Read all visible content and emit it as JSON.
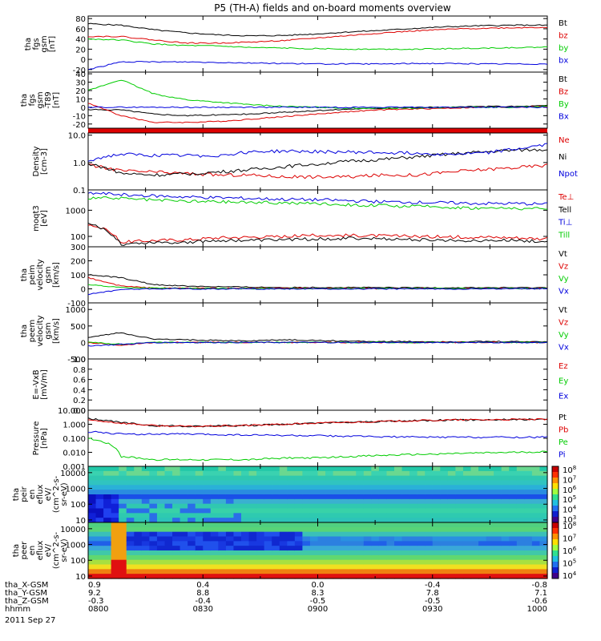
{
  "title": "P5 (TH-A) fields and on-board moments overview",
  "date_label": "2011 Sep 27",
  "colors": {
    "black": "#000000",
    "red": "#dd0000",
    "green": "#00cc00",
    "blue": "#0000dd"
  },
  "colorbar_ticks": [
    "10^8",
    "10^7",
    "10^6",
    "10^5",
    "10^4",
    "10^3"
  ],
  "colorbar2_ticks": [
    "10^8",
    "10^7",
    "10^6",
    "10^5",
    "10^4"
  ],
  "time_axis": {
    "rows": [
      {
        "label": "tha_X-GSM",
        "values": [
          "0.9",
          "0.4",
          "0.0",
          "-0.4",
          "-0.8"
        ]
      },
      {
        "label": "tha_Y-GSM",
        "values": [
          "9.2",
          "8.8",
          "8.3",
          "7.8",
          "7.1"
        ]
      },
      {
        "label": "tha_Z-GSM",
        "values": [
          "-0.3",
          "-0.4",
          "-0.5",
          "-0.5",
          "-0.6"
        ]
      },
      {
        "label": "hhmm",
        "values": [
          "0800",
          "0830",
          "0900",
          "0930",
          "1000"
        ]
      }
    ]
  },
  "chart_data": [
    {
      "type": "line",
      "ylabel": [
        "tha",
        "fgs",
        "gsm",
        "[nT]"
      ],
      "yticks": [
        "80",
        "60",
        "40",
        "20",
        "0",
        "-20"
      ],
      "ylim": [
        -25,
        85
      ],
      "series": [
        {
          "name": "Bt",
          "color": "black",
          "values": [
            70,
            67,
            58,
            52,
            48,
            46,
            47,
            50,
            54,
            57,
            61,
            64,
            66,
            67,
            67
          ]
        },
        {
          "name": "bz",
          "color": "red",
          "values": [
            45,
            45,
            38,
            32,
            32,
            34,
            37,
            42,
            47,
            52,
            56,
            59,
            61,
            62,
            63
          ]
        },
        {
          "name": "by",
          "color": "green",
          "values": [
            40,
            38,
            30,
            27,
            26,
            23,
            22,
            21,
            20,
            20,
            20,
            21,
            22,
            23,
            24
          ]
        },
        {
          "name": "bx",
          "color": "blue",
          "values": [
            -20,
            -5,
            -5,
            -5,
            -6,
            -7,
            -8,
            -9,
            -9,
            -9,
            -8,
            -8,
            -9,
            -9,
            -9
          ]
        }
      ]
    },
    {
      "type": "line",
      "ylabel": [
        "tha",
        "fgs",
        "gsm",
        "-T89",
        "[nT]"
      ],
      "yticks": [
        "40",
        "30",
        "20",
        "10",
        "0",
        "-10",
        "-20"
      ],
      "ylim": [
        -25,
        42
      ],
      "series": [
        {
          "name": "Bt",
          "color": "black",
          "values": [
            -3,
            -3,
            -8,
            -10,
            -9,
            -8,
            -6,
            -4,
            -2,
            -1,
            0,
            0,
            1,
            1,
            2
          ]
        },
        {
          "name": "Bz",
          "color": "red",
          "values": [
            5,
            -10,
            -18,
            -18,
            -17,
            -14,
            -11,
            -8,
            -5,
            -3,
            -2,
            -1,
            0,
            0,
            1
          ]
        },
        {
          "name": "By",
          "color": "green",
          "values": [
            20,
            33,
            16,
            9,
            6,
            3,
            1,
            0,
            -1,
            -1,
            -1,
            0,
            0,
            0,
            1
          ]
        },
        {
          "name": "Bx",
          "color": "blue",
          "values": [
            0,
            0,
            0,
            0,
            0,
            0,
            0,
            0,
            0,
            0,
            0,
            0,
            0,
            0,
            0
          ]
        }
      ]
    },
    {
      "type": "line",
      "scale": "log",
      "ylabel": [
        "Density",
        "[cm-3]"
      ],
      "yticks": [
        "10.0",
        "1.0",
        "0.1"
      ],
      "ylim": [
        0.1,
        12
      ],
      "series": [
        {
          "name": "Ne",
          "color": "red",
          "values": [
            0.8,
            0.5,
            0.45,
            0.4,
            0.35,
            0.35,
            0.3,
            0.3,
            0.3,
            0.35,
            0.35,
            0.45,
            0.55,
            0.65,
            0.8
          ]
        },
        {
          "name": "Ni",
          "color": "black",
          "values": [
            0.9,
            0.4,
            0.35,
            0.38,
            0.45,
            0.55,
            0.7,
            0.9,
            1.1,
            1.3,
            1.6,
            2.0,
            2.4,
            2.8,
            3.0
          ]
        },
        {
          "name": "Npot",
          "color": "blue",
          "values": [
            1.2,
            2.0,
            1.8,
            1.8,
            1.8,
            2.5,
            2.6,
            2.5,
            2.4,
            2.3,
            2.2,
            2.0,
            2.2,
            3.0,
            4.5
          ]
        }
      ]
    },
    {
      "type": "line",
      "scale": "log",
      "ylabel": [
        "moqt3",
        "[eV]"
      ],
      "yticks": [
        "1000",
        "100"
      ],
      "ylim": [
        40,
        6000
      ],
      "series": [
        {
          "name": "Te⊥",
          "color": "red",
          "values": [
            300,
            60,
            70,
            75,
            90,
            95,
            100,
            110,
            110,
            105,
            100,
            95,
            95,
            90,
            80
          ]
        },
        {
          "name": "Tell",
          "color": "black",
          "values": [
            300,
            50,
            60,
            60,
            70,
            70,
            75,
            80,
            85,
            80,
            75,
            70,
            70,
            70,
            65
          ]
        },
        {
          "name": "Ti⊥",
          "color": "blue",
          "values": [
            4500,
            4000,
            3500,
            3200,
            3000,
            2800,
            2600,
            2500,
            2300,
            2100,
            2000,
            1900,
            1800,
            1800,
            1700
          ]
        },
        {
          "name": "Till",
          "color": "green",
          "values": [
            3000,
            2800,
            2400,
            2200,
            2100,
            2000,
            1900,
            1800,
            1600,
            1500,
            1400,
            1300,
            1200,
            1200,
            1100
          ]
        }
      ]
    },
    {
      "type": "line",
      "ylabel": [
        "tha",
        "peim",
        "velocity",
        "gsm",
        "[km/s]"
      ],
      "yticks": [
        "300",
        "200",
        "100",
        "0",
        "-100"
      ],
      "ylim": [
        -100,
        300
      ],
      "series": [
        {
          "name": "Vt",
          "color": "black",
          "values": [
            100,
            80,
            30,
            20,
            15,
            12,
            10,
            10,
            10,
            8,
            8,
            8,
            8,
            8,
            8
          ]
        },
        {
          "name": "Vz",
          "color": "red",
          "values": [
            80,
            20,
            5,
            5,
            3,
            3,
            3,
            3,
            2,
            2,
            2,
            2,
            2,
            2,
            2
          ]
        },
        {
          "name": "Vy",
          "color": "green",
          "values": [
            30,
            10,
            5,
            3,
            2,
            2,
            2,
            2,
            2,
            2,
            2,
            2,
            2,
            2,
            2
          ]
        },
        {
          "name": "Vx",
          "color": "blue",
          "values": [
            -40,
            -5,
            0,
            0,
            0,
            0,
            0,
            0,
            0,
            0,
            0,
            0,
            0,
            0,
            0
          ]
        }
      ]
    },
    {
      "type": "line",
      "ylabel": [
        "tha",
        "peem",
        "velocity",
        "gsm",
        "[km/s]"
      ],
      "yticks": [
        "1000",
        "500",
        "0",
        "-500"
      ],
      "ylim": [
        -500,
        1200
      ],
      "series": [
        {
          "name": "Vt",
          "color": "black",
          "values": [
            150,
            300,
            100,
            80,
            60,
            50,
            80,
            60,
            40,
            30,
            25,
            25,
            25,
            25,
            25
          ]
        },
        {
          "name": "Vz",
          "color": "red",
          "values": [
            0,
            -80,
            0,
            0,
            0,
            0,
            0,
            0,
            0,
            0,
            0,
            0,
            0,
            0,
            0
          ]
        },
        {
          "name": "Vy",
          "color": "green",
          "values": [
            0,
            -50,
            0,
            0,
            0,
            0,
            0,
            0,
            0,
            0,
            0,
            0,
            0,
            0,
            0
          ]
        },
        {
          "name": "Vx",
          "color": "blue",
          "values": [
            -100,
            -60,
            0,
            0,
            0,
            0,
            0,
            0,
            0,
            0,
            0,
            0,
            0,
            0,
            0
          ]
        }
      ]
    },
    {
      "type": "line",
      "ylabel": [
        "E=-VxB",
        "[mV/m]"
      ],
      "yticks": [
        "1.0",
        "0.8",
        "0.6",
        "0.4",
        "0.2",
        "0.0"
      ],
      "ylim": [
        0,
        1
      ],
      "series": [
        {
          "name": "Ez",
          "color": "red",
          "values": []
        },
        {
          "name": "Ey",
          "color": "green",
          "values": []
        },
        {
          "name": "Ex",
          "color": "blue",
          "values": []
        }
      ]
    },
    {
      "type": "line",
      "scale": "log",
      "ylabel": [
        "Pressure",
        "[nPa]"
      ],
      "yticks": [
        "10.000",
        "1.000",
        "0.100",
        "0.010",
        "0.001"
      ],
      "ylim": [
        0.001,
        10
      ],
      "series": [
        {
          "name": "Pt",
          "color": "black",
          "values": [
            2.5,
            1.3,
            0.8,
            0.7,
            0.75,
            0.85,
            1.0,
            1.2,
            1.4,
            1.6,
            1.8,
            2.0,
            2.1,
            2.2,
            2.2
          ]
        },
        {
          "name": "Pb",
          "color": "red",
          "values": [
            2.0,
            1.2,
            0.8,
            0.7,
            0.75,
            0.85,
            1.0,
            1.2,
            1.4,
            1.6,
            1.8,
            2.0,
            2.1,
            2.2,
            2.2
          ]
        },
        {
          "name": "Pe",
          "color": "green",
          "values": [
            0.1,
            0.005,
            0.003,
            0.003,
            0.003,
            0.003,
            0.004,
            0.004,
            0.005,
            0.006,
            0.007,
            0.008,
            0.009,
            0.01,
            0.011
          ]
        },
        {
          "name": "Pi",
          "color": "blue",
          "values": [
            0.3,
            0.2,
            0.2,
            0.2,
            0.18,
            0.17,
            0.16,
            0.15,
            0.14,
            0.13,
            0.12,
            0.12,
            0.12,
            0.12,
            0.12
          ]
        }
      ]
    },
    {
      "type": "heatmap",
      "ylabel": [
        "tha",
        "peir",
        "en",
        "eflux",
        "eV/",
        "(cm^2-s-",
        "sr-eV)"
      ],
      "yticks": [
        "10000",
        "1000",
        "100",
        "10"
      ],
      "ylim": [
        7,
        25000
      ]
    },
    {
      "type": "heatmap",
      "ylabel": [
        "tha",
        "peer",
        "en",
        "eflux",
        "eV/",
        "(cm^2-s-",
        "sr-eV)"
      ],
      "yticks": [
        "10000",
        "1000",
        "100",
        "10"
      ],
      "ylim": [
        7,
        25000
      ]
    }
  ]
}
